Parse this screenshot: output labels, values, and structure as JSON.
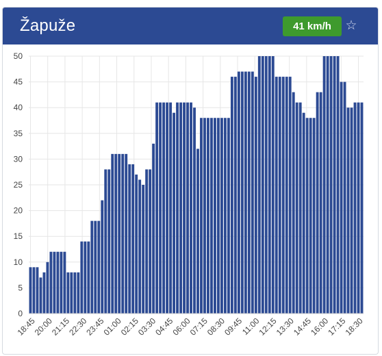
{
  "header": {
    "title": "Žapuže",
    "speed_badge": "41 km/h",
    "favorite_icon": "star-outline-icon"
  },
  "colors": {
    "header_bg": "#2c4a93",
    "bar": "#2c4a93",
    "badge": "#3e9a2d"
  },
  "chart_data": {
    "type": "bar",
    "title": "",
    "xlabel": "",
    "ylabel": "",
    "ylim": [
      0,
      50
    ],
    "yticks": [
      0,
      5,
      10,
      15,
      20,
      25,
      30,
      35,
      40,
      45,
      50
    ],
    "grid": true,
    "xtick_labels": [
      "18:45",
      "20:00",
      "21:15",
      "22:30",
      "23:45",
      "01:00",
      "02:15",
      "03:30",
      "04:45",
      "06:00",
      "07:15",
      "08:30",
      "09:45",
      "11:00",
      "12:15",
      "13:30",
      "14:45",
      "16:00",
      "17:15",
      "18:30"
    ],
    "values": [
      9,
      9,
      9,
      7,
      8,
      10,
      12,
      12,
      12,
      12,
      12,
      8,
      8,
      8,
      8,
      14,
      14,
      14,
      18,
      18,
      18,
      22,
      28,
      28,
      31,
      31,
      31,
      31,
      31,
      29,
      29,
      27,
      26,
      25,
      28,
      28,
      33,
      41,
      41,
      41,
      41,
      41,
      39,
      41,
      41,
      41,
      41,
      41,
      40,
      32,
      38,
      38,
      38,
      38,
      38,
      38,
      38,
      38,
      38,
      46,
      46,
      47,
      47,
      47,
      47,
      47,
      46,
      50,
      50,
      50,
      50,
      50,
      46,
      46,
      46,
      46,
      46,
      43,
      41,
      41,
      39,
      38,
      38,
      38,
      43,
      43,
      50,
      50,
      50,
      50,
      50,
      45,
      45,
      40,
      40,
      41,
      41,
      41
    ]
  }
}
